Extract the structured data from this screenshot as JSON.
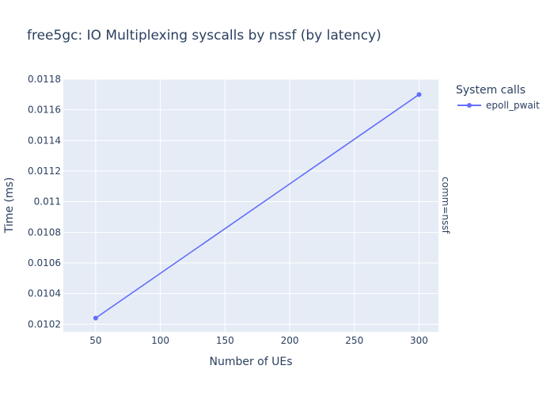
{
  "chart_data": {
    "type": "line",
    "title": "free5gc: IO Multiplexing syscalls by nssf (by latency)",
    "xlabel": "Number of UEs",
    "ylabel": "Time (ms)",
    "facet_label": "comm=nssf",
    "legend_title": "System calls",
    "legend_position": "top-right",
    "grid": true,
    "xlim": [
      25,
      315
    ],
    "ylim": [
      0.01015,
      0.0118
    ],
    "x_ticks": [
      "50",
      "100",
      "150",
      "200",
      "250",
      "300"
    ],
    "y_ticks": [
      "0.0102",
      "0.0104",
      "0.0106",
      "0.0108",
      "0.011",
      "0.0112",
      "0.0114",
      "0.0116",
      "0.0118"
    ],
    "series": [
      {
        "name": "epoll_pwait",
        "color": "#636efa",
        "x": [
          50,
          300
        ],
        "y": [
          0.01024,
          0.0117
        ]
      }
    ]
  }
}
